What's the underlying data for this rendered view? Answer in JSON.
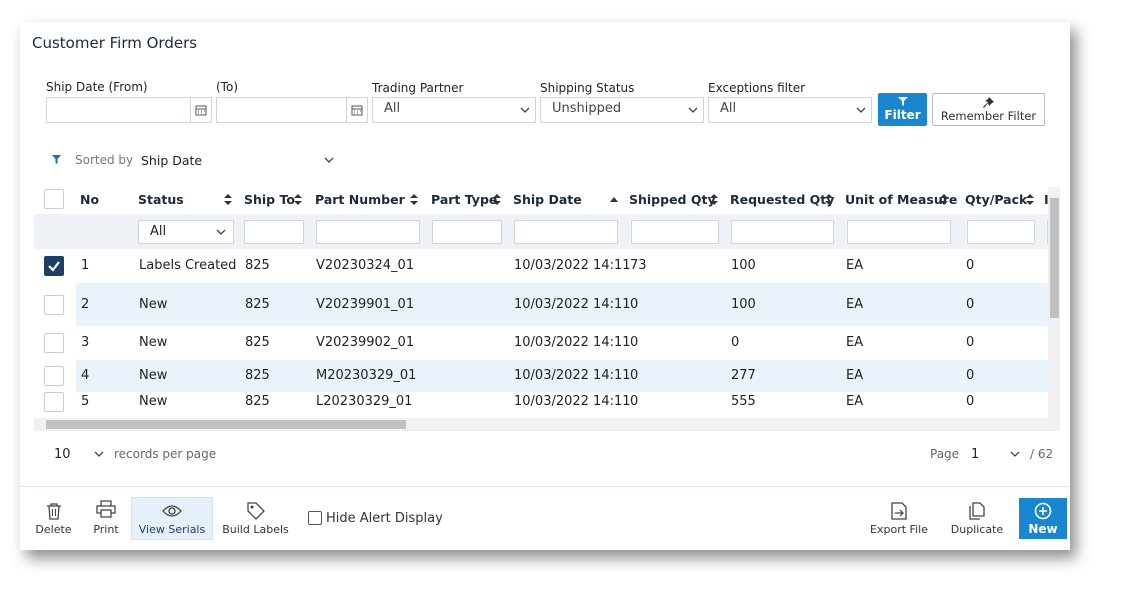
{
  "header": {
    "title": "Customer Firm Orders"
  },
  "filters": {
    "ship_date_from": {
      "label": "Ship Date (From)"
    },
    "ship_date_to": {
      "label": "(To)"
    },
    "trading_partner": {
      "label": "Trading Partner",
      "value": "All"
    },
    "shipping_status": {
      "label": "Shipping Status",
      "value": "Unshipped"
    },
    "exceptions": {
      "label": "Exceptions filter",
      "value": "All"
    },
    "filter_button": "Filter",
    "remember_button": "Remember Filter"
  },
  "sort": {
    "label": "Sorted by",
    "value": "Ship Date"
  },
  "table": {
    "columns": [
      "No",
      "Status",
      "Ship To",
      "Part Number",
      "Part Type",
      "Ship Date",
      "Shipped Qty",
      "Requested Qty",
      "Unit of Measure",
      "Qty/Pack"
    ],
    "status_filter": "All",
    "rows": [
      {
        "selected": true,
        "no": "1",
        "status": "Labels Created",
        "ship_to": "825",
        "part_number": "V20230324_01",
        "ship_date": "10/03/2022 14:11",
        "shipped_qty": "73",
        "requested_qty": "100",
        "unit": "EA",
        "qty_pack": "0"
      },
      {
        "selected": false,
        "no": "2",
        "status": "New",
        "ship_to": "825",
        "part_number": "V20239901_01",
        "ship_date": "10/03/2022 14:11",
        "shipped_qty": "0",
        "requested_qty": "100",
        "unit": "EA",
        "qty_pack": "0"
      },
      {
        "selected": false,
        "no": "3",
        "status": "New",
        "ship_to": "825",
        "part_number": "V20239902_01",
        "ship_date": "10/03/2022 14:11",
        "shipped_qty": "0",
        "requested_qty": "0",
        "unit": "EA",
        "qty_pack": "0"
      },
      {
        "selected": false,
        "no": "4",
        "status": "New",
        "ship_to": "825",
        "part_number": "M20230329_01",
        "ship_date": "10/03/2022 14:11",
        "shipped_qty": "0",
        "requested_qty": "277",
        "unit": "EA",
        "qty_pack": "0"
      },
      {
        "selected": false,
        "no": "5",
        "status": "New",
        "ship_to": "825",
        "part_number": "L20230329_01",
        "ship_date": "10/03/2022 14:11",
        "shipped_qty": "0",
        "requested_qty": "555",
        "unit": "EA",
        "qty_pack": "0"
      }
    ]
  },
  "pagination": {
    "page_size": "10",
    "page_size_label": "records per page",
    "page_label": "Page",
    "page": "1",
    "total": "/ 62"
  },
  "toolbar": {
    "delete": "Delete",
    "print": "Print",
    "view_serials": "View Serials",
    "build_labels": "Build Labels",
    "hide_alert": "Hide Alert Display",
    "export": "Export File",
    "duplicate": "Duplicate",
    "new": "New"
  }
}
